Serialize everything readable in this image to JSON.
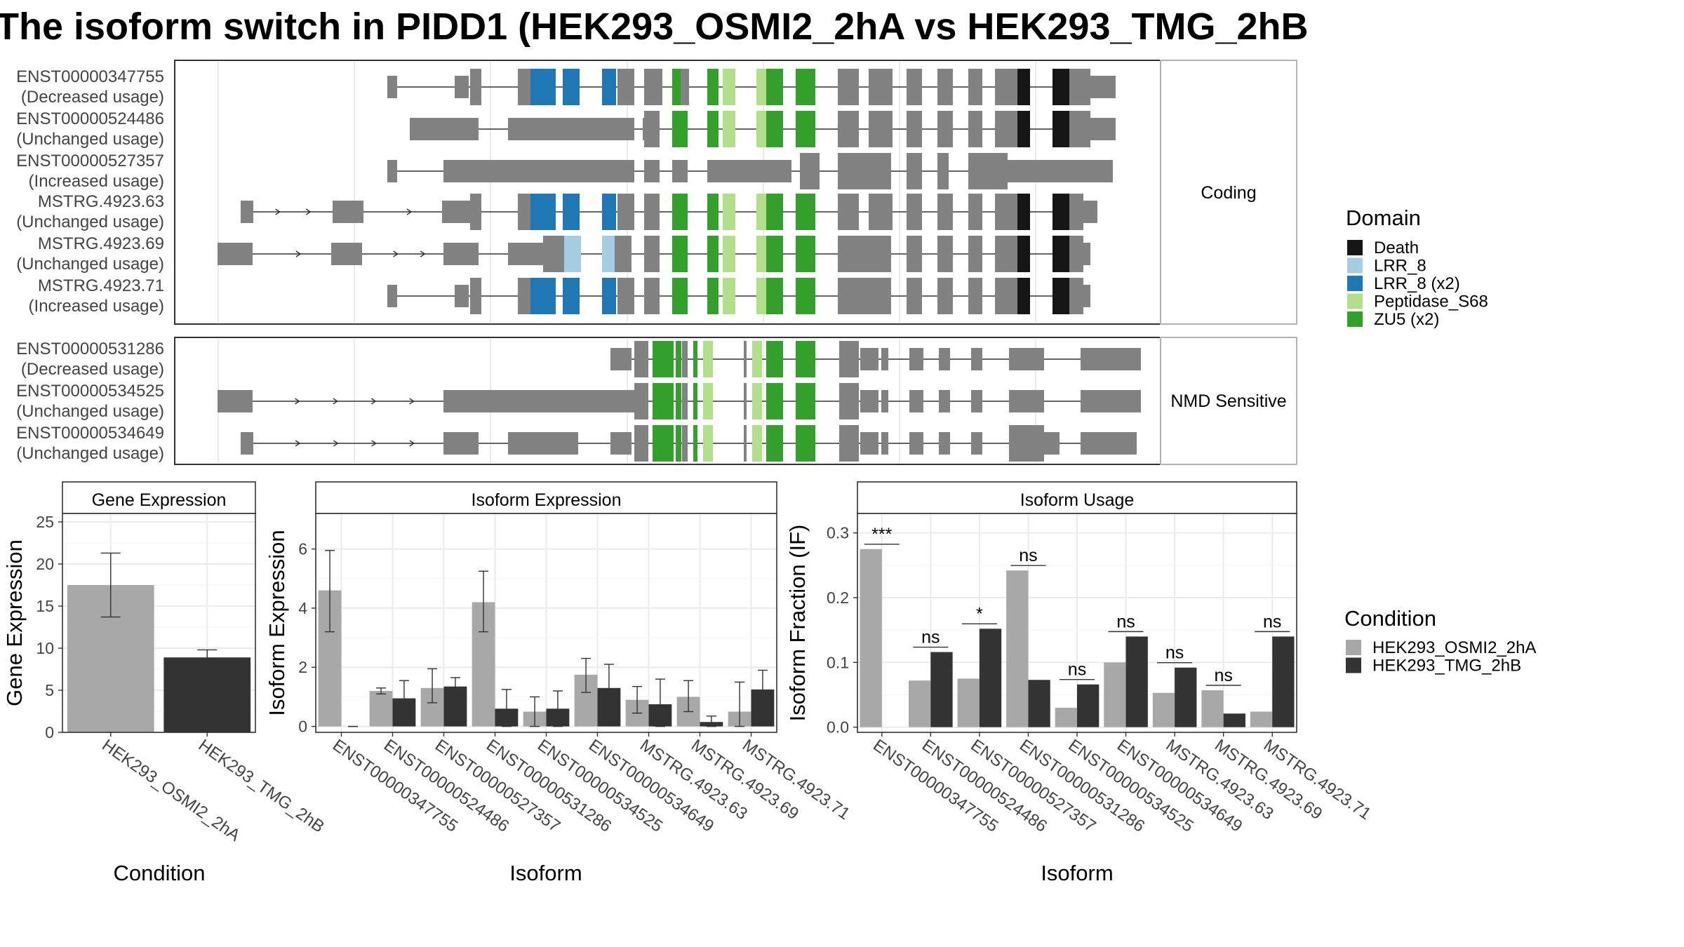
{
  "title": "The isoform switch in PIDD1 (HEK293_OSMI2_2hA vs HEK293_TMG_2hB",
  "colors": {
    "exon": "#828282",
    "cond1": "#a8a8a8",
    "cond2": "#333333",
    "domains": {
      "Death": "#161616",
      "LRR_8": "#a6cee3",
      "LRR_8 (x2)": "#1f78b4",
      "Peptidase_S68": "#b2df8a",
      "ZU5 (x2)": "#33a02c"
    }
  },
  "structure": {
    "groups": [
      {
        "label": "Coding",
        "transcripts": [
          {
            "id": "ENST00000347755",
            "usage": "(Decreased usage)"
          },
          {
            "id": "ENST00000524486",
            "usage": "(Unchanged usage)"
          },
          {
            "id": "ENST00000527357",
            "usage": "(Increased usage)"
          },
          {
            "id": "MSTRG.4923.63",
            "usage": "(Unchanged usage)"
          },
          {
            "id": "MSTRG.4923.69",
            "usage": "(Unchanged usage)"
          },
          {
            "id": "MSTRG.4923.71",
            "usage": "(Increased usage)"
          }
        ]
      },
      {
        "label": "NMD Sensitive",
        "transcripts": [
          {
            "id": "ENST00000531286",
            "usage": "(Decreased usage)"
          },
          {
            "id": "ENST00000534525",
            "usage": "(Unchanged usage)"
          },
          {
            "id": "ENST00000534649",
            "usage": "(Unchanged usage)"
          }
        ]
      }
    ]
  },
  "legend_domain": {
    "title": "Domain",
    "items": [
      "Death",
      "LRR_8",
      "LRR_8 (x2)",
      "Peptidase_S68",
      "ZU5 (x2)"
    ]
  },
  "legend_condition": {
    "title": "Condition",
    "items": [
      "HEK293_OSMI2_2hA",
      "HEK293_TMG_2hB"
    ]
  },
  "chart_data": [
    {
      "type": "bar",
      "title": "Gene Expression",
      "xlabel": "Condition",
      "ylabel": "Gene Expression",
      "categories": [
        "HEK293_OSMI2_2hA",
        "HEK293_TMG_2hB"
      ],
      "values": [
        17.5,
        8.9
      ],
      "errors_low": [
        13.7,
        8.0
      ],
      "errors_high": [
        21.3,
        9.8
      ],
      "ylim": [
        0,
        26
      ],
      "yticks": [
        0,
        5,
        10,
        15,
        20,
        25
      ]
    },
    {
      "type": "bar",
      "title": "Isoform Expression",
      "xlabel": "Isoform",
      "ylabel": "Isoform Expression",
      "categories": [
        "ENST00000347755",
        "ENST00000524486",
        "ENST00000527357",
        "ENST00000531286",
        "ENST00000534525",
        "ENST00000534649",
        "MSTRG.4923.63",
        "MSTRG.4923.69",
        "MSTRG.4923.71"
      ],
      "series": [
        {
          "name": "HEK293_OSMI2_2hA",
          "values": [
            4.6,
            1.2,
            1.3,
            4.2,
            0.5,
            1.75,
            0.9,
            1.0,
            0.5
          ],
          "err_low": [
            3.2,
            1.1,
            0.8,
            3.2,
            0.0,
            1.15,
            0.45,
            0.5,
            0.0
          ],
          "err_high": [
            5.95,
            1.3,
            1.95,
            5.25,
            1.0,
            2.3,
            1.35,
            1.55,
            1.5
          ]
        },
        {
          "name": "HEK293_TMG_2hB",
          "values": [
            0.0,
            0.95,
            1.35,
            0.6,
            0.6,
            1.3,
            0.75,
            0.15,
            1.25
          ],
          "err_low": [
            0.0,
            0.35,
            1.05,
            0.0,
            0.0,
            0.45,
            0.0,
            0.0,
            0.6
          ],
          "err_high": [
            0.0,
            1.55,
            1.65,
            1.25,
            1.2,
            2.1,
            1.6,
            0.35,
            1.9
          ]
        }
      ],
      "ylim": [
        -0.2,
        7.2
      ],
      "yticks": [
        0,
        2,
        4,
        6
      ]
    },
    {
      "type": "bar",
      "title": "Isoform Usage",
      "xlabel": "Isoform",
      "ylabel": "Isoform Fraction (IF)",
      "categories": [
        "ENST00000347755",
        "ENST00000524486",
        "ENST00000527357",
        "ENST00000531286",
        "ENST00000534525",
        "ENST00000534649",
        "MSTRG.4923.63",
        "MSTRG.4923.69",
        "MSTRG.4923.71"
      ],
      "series": [
        {
          "name": "HEK293_OSMI2_2hA",
          "values": [
            0.275,
            0.072,
            0.075,
            0.242,
            0.03,
            0.1,
            0.053,
            0.057,
            0.024
          ]
        },
        {
          "name": "HEK293_TMG_2hB",
          "values": [
            0.0,
            0.116,
            0.152,
            0.073,
            0.066,
            0.14,
            0.092,
            0.021,
            0.14
          ]
        }
      ],
      "significance": [
        "***",
        "ns",
        "*",
        "ns",
        "ns",
        "ns",
        "ns",
        "ns",
        "ns"
      ],
      "ylim": [
        -0.008,
        0.33
      ],
      "yticks": [
        0.0,
        0.1,
        0.2,
        0.3
      ],
      "ytick_labels": [
        "0.0",
        "0.1",
        "0.2",
        "0.3"
      ]
    }
  ]
}
